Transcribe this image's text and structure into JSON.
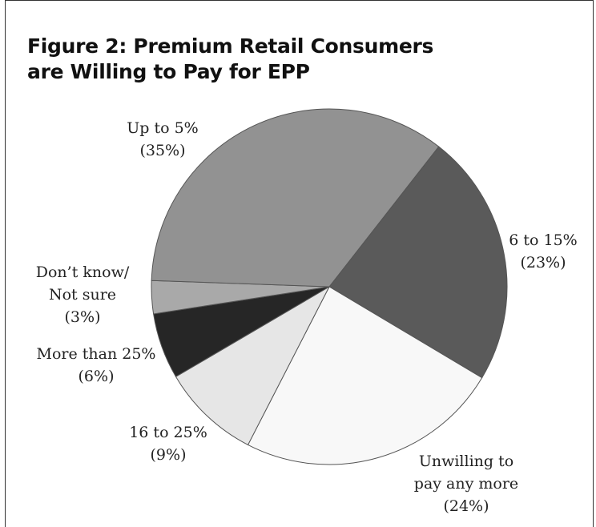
{
  "chart_data": {
    "type": "pie",
    "title_lines": [
      "Figure 2: Premium Retail Consumers",
      "are Willing to Pay for EPP"
    ],
    "slices": [
      {
        "label_lines": [
          "6 to 15%",
          "(23%)"
        ],
        "value": 23,
        "color": "#5a5a5a"
      },
      {
        "label_lines": [
          "Unwilling to",
          "pay any more",
          "(24%)"
        ],
        "value": 24,
        "color": "#f8f8f8"
      },
      {
        "label_lines": [
          "16 to 25%",
          "(9%)"
        ],
        "value": 9,
        "color": "#e6e6e6"
      },
      {
        "label_lines": [
          "More than 25%",
          "(6%)"
        ],
        "value": 6,
        "color": "#262626"
      },
      {
        "label_lines": [
          "Don’t know/",
          "Not sure",
          "(3%)"
        ],
        "value": 3,
        "color": "#a9a9a9"
      },
      {
        "label_lines": [
          "Up to 5%",
          "(35%)"
        ],
        "value": 35,
        "color": "#929292"
      }
    ]
  }
}
